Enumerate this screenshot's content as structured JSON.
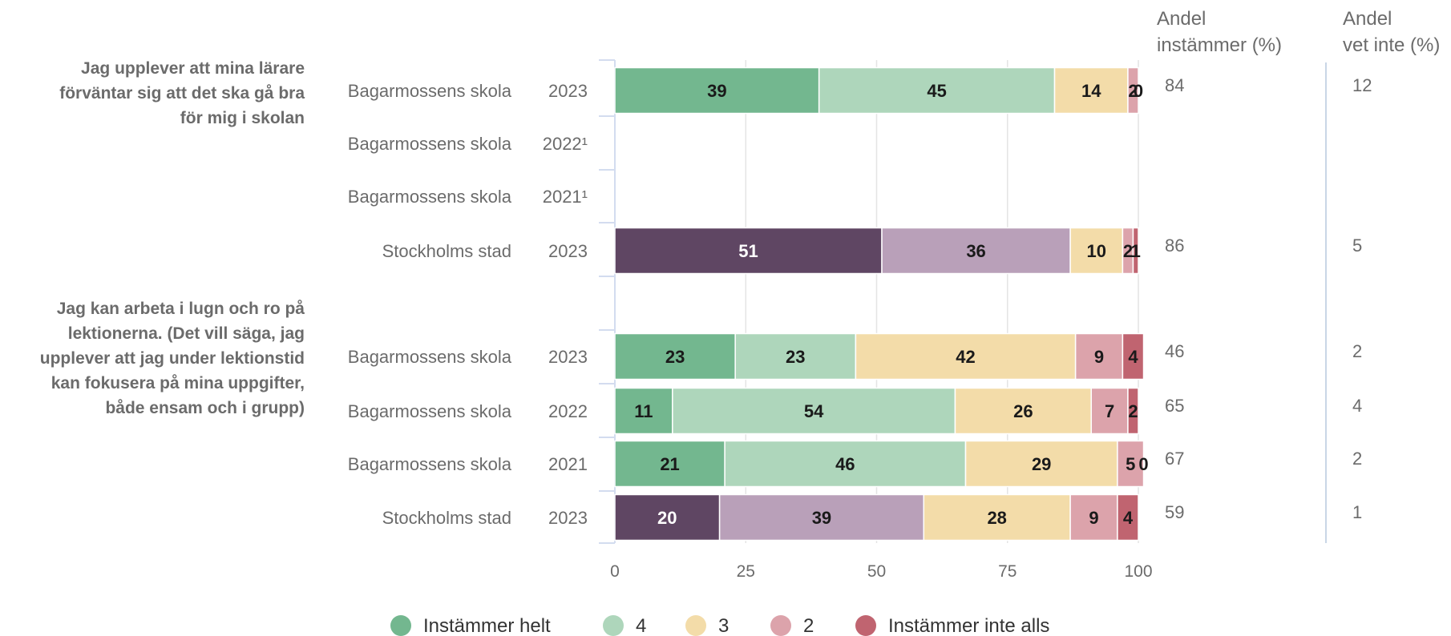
{
  "chart_data": {
    "type": "bar",
    "stacked": true,
    "orientation": "horizontal",
    "xlim": [
      0,
      100
    ],
    "xticks": [
      "0",
      "25",
      "50",
      "75",
      "100"
    ],
    "grid": true,
    "legend_position": "bottom",
    "column_headers": [
      [
        "Andel",
        "instämmer (%)"
      ],
      [
        "Andel",
        "vet inte (%)"
      ]
    ],
    "legend": [
      {
        "label": "Instämmer helt",
        "color": "#73b78f"
      },
      {
        "label": "4",
        "color": "#aed6bb"
      },
      {
        "label": "3",
        "color": "#f3dca9"
      },
      {
        "label": "2",
        "color": "#dca3ab"
      },
      {
        "label": "Instämmer inte alls",
        "color": "#c06470"
      }
    ],
    "stad_colors": [
      "#5f4663",
      "#b9a0b9",
      "#f3dca9",
      "#dca3ab",
      "#c06470"
    ],
    "groups": [
      {
        "question_lines": [
          "Jag upplever att mina lärare",
          "förväntar sig att det ska gå bra",
          "för mig i skolan"
        ],
        "rows": [
          {
            "name": "Bagarmossens skola",
            "year": "2023",
            "values": [
              39,
              45,
              14,
              2,
              0
            ],
            "palette": "school",
            "andel_instammer": "84",
            "andel_vet_inte": "12"
          },
          {
            "name": "Bagarmossens skola",
            "year": "2022¹",
            "values": null,
            "palette": "school",
            "andel_instammer": "",
            "andel_vet_inte": ""
          },
          {
            "name": "Bagarmossens skola",
            "year": "2021¹",
            "values": null,
            "palette": "school",
            "andel_instammer": "",
            "andel_vet_inte": ""
          },
          {
            "name": "Stockholms stad",
            "year": "2023",
            "values": [
              51,
              36,
              10,
              2,
              1
            ],
            "palette": "stad",
            "andel_instammer": "86",
            "andel_vet_inte": "5"
          }
        ]
      },
      {
        "question_lines": [
          "Jag kan arbeta i lugn och ro på",
          "lektionerna. (Det vill säga, jag",
          "upplever att jag under lektionstid",
          "kan fokusera på mina uppgifter,",
          "både ensam och i grupp)"
        ],
        "rows": [
          {
            "name": "Bagarmossens skola",
            "year": "2023",
            "values": [
              23,
              23,
              42,
              9,
              4
            ],
            "palette": "school",
            "andel_instammer": "46",
            "andel_vet_inte": "2"
          },
          {
            "name": "Bagarmossens skola",
            "year": "2022",
            "values": [
              11,
              54,
              26,
              7,
              2
            ],
            "palette": "school",
            "andel_instammer": "65",
            "andel_vet_inte": "4"
          },
          {
            "name": "Bagarmossens skola",
            "year": "2021",
            "values": [
              21,
              46,
              29,
              5,
              0
            ],
            "palette": "school",
            "andel_instammer": "67",
            "andel_vet_inte": "2"
          },
          {
            "name": "Stockholms stad",
            "year": "2023",
            "values": [
              20,
              39,
              28,
              9,
              4
            ],
            "palette": "stad",
            "andel_instammer": "59",
            "andel_vet_inte": "1"
          }
        ]
      }
    ]
  }
}
